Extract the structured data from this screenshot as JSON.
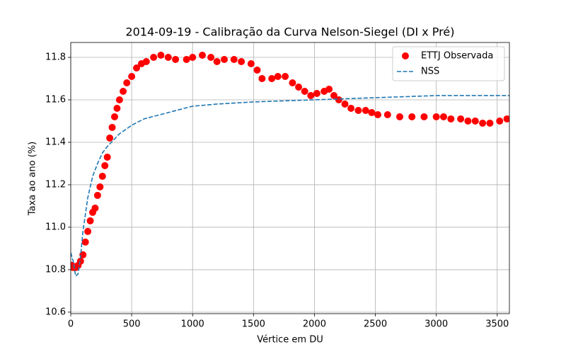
{
  "chart_data": {
    "type": "scatter",
    "title": "2014-09-19 - Calibração da Curva Nelson-Siegel (DI x Pré)",
    "xlabel": "Vértice em DU",
    "ylabel": "Taxa ao ano (%)",
    "xlim": [
      0,
      3600
    ],
    "ylim": [
      10.593,
      11.87
    ],
    "xticks": [
      0,
      500,
      1000,
      1500,
      2000,
      2500,
      3000,
      3500
    ],
    "yticks": [
      10.6,
      10.8,
      {
        "value": 11,
        "label": "11.0"
      },
      11.2,
      11.4,
      11.6,
      11.8
    ],
    "grid": true,
    "legend": "upper right",
    "series": [
      {
        "name": "ETTJ Observada",
        "color": "#ff0000",
        "kind": "scatter",
        "x": [
          10,
          20,
          40,
          60,
          80,
          100,
          120,
          140,
          160,
          180,
          200,
          220,
          240,
          260,
          280,
          300,
          320,
          340,
          360,
          380,
          400,
          430,
          460,
          500,
          540,
          580,
          620,
          680,
          740,
          800,
          860,
          950,
          1000,
          1080,
          1150,
          1200,
          1260,
          1340,
          1400,
          1480,
          1530,
          1570,
          1650,
          1700,
          1760,
          1820,
          1870,
          1920,
          1970,
          2020,
          2080,
          2120,
          2160,
          2200,
          2250,
          2300,
          2360,
          2420,
          2470,
          2520,
          2600,
          2700,
          2800,
          2900,
          3000,
          3060,
          3120,
          3200,
          3260,
          3320,
          3380,
          3440,
          3520,
          3580
        ],
        "values": [
          10.82,
          10.81,
          10.81,
          10.82,
          10.84,
          10.87,
          10.93,
          10.98,
          11.03,
          11.07,
          11.09,
          11.15,
          11.19,
          11.24,
          11.29,
          11.33,
          11.42,
          11.47,
          11.52,
          11.56,
          11.6,
          11.64,
          11.68,
          11.71,
          11.75,
          11.77,
          11.78,
          11.8,
          11.81,
          11.8,
          11.79,
          11.79,
          11.8,
          11.81,
          11.8,
          11.78,
          11.79,
          11.79,
          11.78,
          11.77,
          11.74,
          11.7,
          11.7,
          11.71,
          11.71,
          11.68,
          11.66,
          11.64,
          11.62,
          11.63,
          11.64,
          11.65,
          11.62,
          11.6,
          11.58,
          11.56,
          11.55,
          11.55,
          11.54,
          11.53,
          11.53,
          11.52,
          11.52,
          11.52,
          11.52,
          11.52,
          11.51,
          11.51,
          11.5,
          11.5,
          11.49,
          11.49,
          11.5,
          11.51
        ]
      },
      {
        "name": "NSS",
        "color": "#1f77b4",
        "kind": "dashed",
        "x": [
          0,
          20,
          40,
          60,
          80,
          100,
          140,
          180,
          220,
          260,
          300,
          400,
          500,
          600,
          800,
          1000,
          1200,
          1500,
          2000,
          2500,
          3000,
          3600
        ],
        "values": [
          10.88,
          10.84,
          10.77,
          10.78,
          10.86,
          10.98,
          11.14,
          11.24,
          11.3,
          11.35,
          11.38,
          11.44,
          11.48,
          11.51,
          11.54,
          11.57,
          11.58,
          11.59,
          11.6,
          11.61,
          11.62,
          11.62
        ]
      }
    ]
  }
}
